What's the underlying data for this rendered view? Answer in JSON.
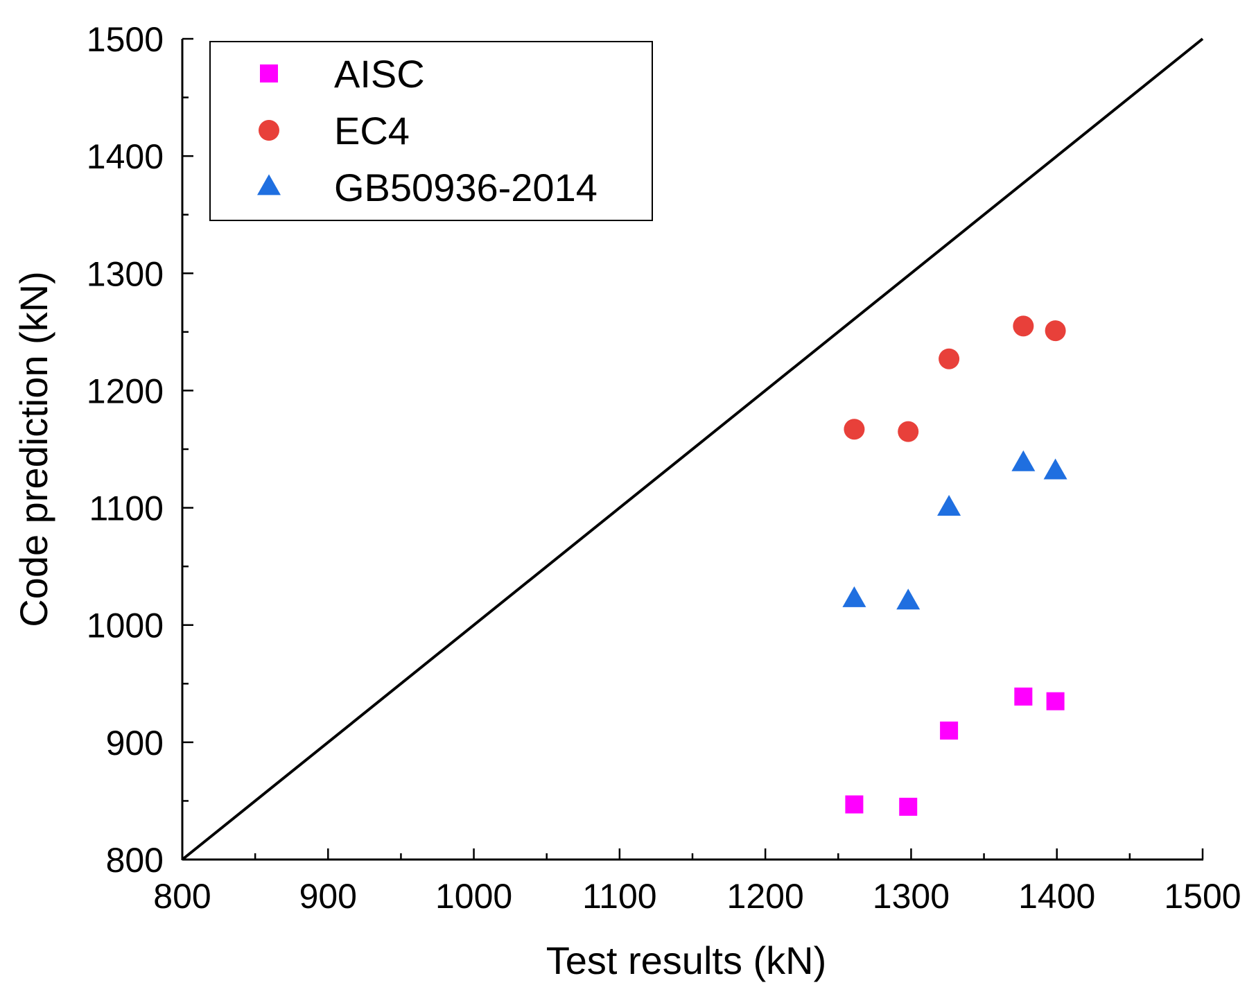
{
  "chart_data": {
    "type": "scatter",
    "title": "",
    "xlabel": "Test results (kN)",
    "ylabel": "Code prediction (kN)",
    "xlim": [
      800,
      1500
    ],
    "ylim": [
      800,
      1500
    ],
    "xticks": [
      "800",
      "900",
      "1000",
      "1100",
      "1200",
      "1300",
      "1400",
      "1500"
    ],
    "yticks": [
      "800",
      "900",
      "1000",
      "1100",
      "1200",
      "1300",
      "1400",
      "1500"
    ],
    "reference_line": {
      "name": "y = x",
      "x": [
        800,
        1500
      ],
      "y": [
        800,
        1500
      ],
      "color": "#000000"
    },
    "legend_position": "top-left",
    "series": [
      {
        "name": "AISC",
        "marker": "square",
        "color": "#ff00ff",
        "x": [
          1261,
          1298,
          1326,
          1377,
          1399
        ],
        "y": [
          847,
          845,
          910,
          939,
          935
        ]
      },
      {
        "name": "EC4",
        "marker": "circle",
        "color": "#e8403a",
        "x": [
          1261,
          1298,
          1326,
          1377,
          1399
        ],
        "y": [
          1167,
          1165,
          1227,
          1255,
          1251
        ]
      },
      {
        "name": "GB50936-2014",
        "marker": "triangle",
        "color": "#1f6fe0",
        "x": [
          1261,
          1298,
          1326,
          1377,
          1399
        ],
        "y": [
          1022,
          1020,
          1100,
          1138,
          1131
        ]
      }
    ]
  }
}
